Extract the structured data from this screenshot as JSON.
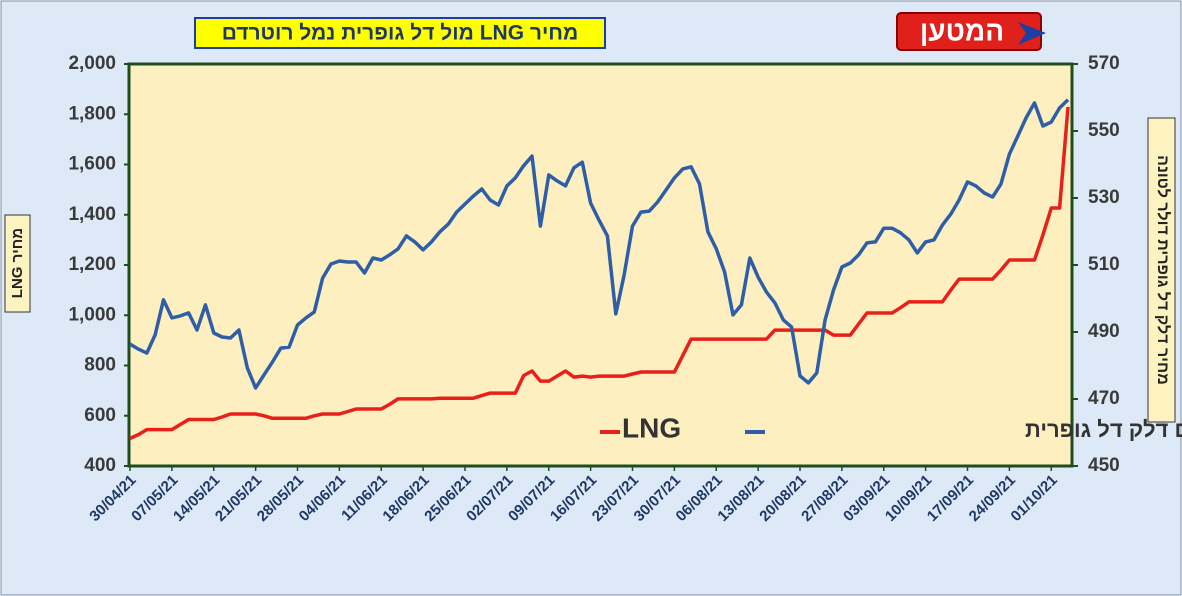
{
  "chart_data": {
    "type": "line",
    "title": "מחיר LNG מול דל גופרית נמל רוטרדם",
    "logo": "המטען",
    "ylabel": "מחיר LNG",
    "y2label": "מחיר דלק דל גופרית דולר לטונה",
    "categories": [
      "30/04/21",
      null,
      null,
      null,
      null,
      "07/05/21",
      null,
      null,
      null,
      null,
      "14/05/21",
      null,
      null,
      null,
      null,
      "21/05/21",
      null,
      null,
      null,
      null,
      "28/05/21",
      null,
      null,
      null,
      null,
      "04/06/21",
      null,
      null,
      null,
      null,
      "11/06/21",
      null,
      null,
      null,
      null,
      "18/06/21",
      null,
      null,
      null,
      null,
      "25/06/21",
      null,
      null,
      null,
      null,
      "02/07/21",
      null,
      null,
      null,
      null,
      "09/07/21",
      null,
      null,
      null,
      null,
      "16/07/21",
      null,
      null,
      null,
      null,
      "23/07/21",
      null,
      null,
      null,
      null,
      "30/07/21",
      null,
      null,
      null,
      null,
      "06/08/21",
      null,
      null,
      null,
      null,
      "13/08/21",
      null,
      null,
      null,
      null,
      "20/08/21",
      null,
      null,
      null,
      null,
      "27/08/21",
      null,
      null,
      null,
      null,
      "03/09/21",
      null,
      null,
      null,
      null,
      "10/09/21",
      null,
      null,
      null,
      null,
      "17/09/21",
      null,
      null,
      null,
      null,
      "24/09/21",
      null,
      null,
      null,
      null,
      "01/10/21",
      null,
      null
    ],
    "series": [
      {
        "name": "LNG",
        "color": "#e8201a",
        "axis": "y",
        "values": [
          510,
          525,
          545,
          545,
          545,
          545,
          565,
          585,
          585,
          585,
          585,
          595,
          607,
          607,
          607,
          607,
          600,
          590,
          590,
          590,
          590,
          590,
          600,
          607,
          607,
          607,
          617,
          627,
          627,
          627,
          627,
          645,
          667,
          667,
          667,
          667,
          667,
          670,
          670,
          670,
          670,
          670,
          680,
          690,
          690,
          690,
          690,
          760,
          778,
          738,
          738,
          758,
          778,
          754,
          758,
          754,
          758,
          758,
          758,
          758,
          766,
          774,
          774,
          774,
          774,
          774,
          840,
          905,
          905,
          905,
          905,
          905,
          905,
          905,
          905,
          905,
          905,
          941,
          941,
          941,
          941,
          941,
          941,
          941,
          921,
          921,
          921,
          965,
          1009,
          1009,
          1009,
          1009,
          1030,
          1053,
          1053,
          1053,
          1053,
          1053,
          1100,
          1144,
          1144,
          1144,
          1144,
          1144,
          1180,
          1220,
          1220,
          1220,
          1220,
          1320,
          1427,
          1427,
          1829
        ]
      },
      {
        "name": "רוטרדם דלק דל גופרית",
        "color": "#2e5ea8",
        "axis": "y2",
        "values": [
          486.4,
          484.9,
          483.7,
          489.1,
          499.6,
          494.2,
          494.8,
          495.7,
          490.6,
          498.1,
          489.7,
          488.5,
          488.2,
          490.6,
          479.3,
          473.3,
          477.2,
          481.0,
          485.2,
          485.5,
          492.1,
          494.2,
          496.0,
          506.1,
          510.3,
          511.2,
          510.9,
          510.9,
          507.6,
          512.1,
          511.5,
          513.0,
          514.8,
          518.7,
          516.9,
          514.5,
          516.9,
          519.9,
          522.2,
          525.8,
          528.2,
          530.6,
          532.7,
          529.4,
          527.9,
          533.6,
          536.0,
          539.6,
          542.5,
          521.6,
          536.9,
          535.1,
          533.6,
          539.0,
          540.7,
          528.5,
          523.4,
          518.7,
          495.4,
          507.0,
          521.6,
          525.8,
          526.1,
          528.8,
          532.4,
          536.0,
          538.7,
          539.3,
          534.2,
          519.9,
          514.8,
          507.9,
          495.1,
          498.1,
          512.1,
          506.4,
          501.9,
          498.7,
          493.6,
          491.5,
          476.9,
          474.8,
          477.8,
          493.6,
          502.5,
          509.4,
          510.6,
          513.0,
          516.6,
          516.9,
          521.0,
          521.0,
          519.6,
          517.5,
          513.6,
          516.9,
          517.5,
          521.9,
          525.2,
          529.4,
          534.8,
          533.6,
          531.5,
          530.3,
          534.2,
          543.1,
          548.5,
          553.9,
          558.4,
          551.5,
          552.7,
          556.9,
          559.3
        ]
      }
    ],
    "ylim": [
      400,
      2000
    ],
    "yticks": [
      400,
      600,
      800,
      {
        "value": 1000,
        "label": "1,000"
      },
      {
        "value": 1200,
        "label": "1,200"
      },
      {
        "value": 1400,
        "label": "1,400"
      },
      {
        "value": 1600,
        "label": "1,600"
      },
      {
        "value": 1800,
        "label": "1,800"
      },
      {
        "value": 2000,
        "label": "2,000"
      }
    ],
    "y2lim": [
      450,
      570
    ],
    "y2ticks": [
      450,
      470,
      490,
      510,
      530,
      550,
      570
    ],
    "grid": false
  }
}
